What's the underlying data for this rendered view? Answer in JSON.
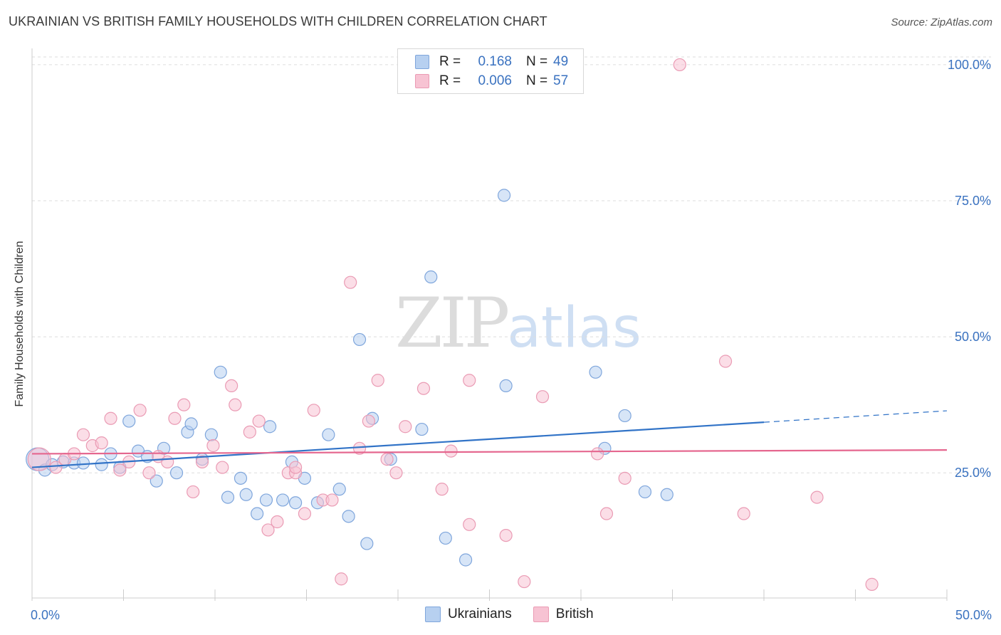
{
  "title": "UKRAINIAN VS BRITISH FAMILY HOUSEHOLDS WITH CHILDREN CORRELATION CHART",
  "source": "Source: ZipAtlas.com",
  "watermark": {
    "zip": "ZIP",
    "atlas": "atlas"
  },
  "legend": {
    "r_label": "R =",
    "n_label": "N =",
    "series": [
      {
        "name": "Ukrainians",
        "r": "0.168",
        "n": "49"
      },
      {
        "name": "British",
        "r": "0.006",
        "n": "57"
      }
    ]
  },
  "colors": {
    "blue_fill": "#b7d0f0",
    "blue_stroke": "#7fa6dc",
    "blue_line": "#3173c7",
    "pink_fill": "#f7c3d3",
    "pink_stroke": "#ea9bb4",
    "pink_line": "#e5678f",
    "axis_text": "#3a72c0",
    "grid": "#dddddd"
  },
  "chart_data": {
    "type": "scatter",
    "title": "UKRAINIAN VS BRITISH FAMILY HOUSEHOLDS WITH CHILDREN CORRELATION CHART",
    "xlabel": "",
    "ylabel": "Family Households with Children",
    "xlim": [
      0,
      50
    ],
    "ylim": [
      2,
      103
    ],
    "x_tick_labels": [
      {
        "value": 0,
        "label": "0.0%"
      },
      {
        "value": 50,
        "label": "50.0%"
      }
    ],
    "y_tick_labels": [
      {
        "value": 25,
        "label": "25.0%"
      },
      {
        "value": 50,
        "label": "50.0%"
      },
      {
        "value": 75,
        "label": "75.0%"
      },
      {
        "value": 100,
        "label": "100.0%"
      }
    ],
    "grid": true,
    "legend_position": "top-center",
    "series": [
      {
        "name": "Ukrainians",
        "trend": {
          "x": [
            0,
            40
          ],
          "y": [
            26.0,
            34.3
          ],
          "dashed_to": [
            50,
            36.4
          ]
        },
        "points": [
          {
            "x": 0.3,
            "y": 27.5,
            "big": true
          },
          {
            "x": 0.7,
            "y": 25.5
          },
          {
            "x": 1.1,
            "y": 26.5
          },
          {
            "x": 1.7,
            "y": 27.0
          },
          {
            "x": 2.3,
            "y": 26.8
          },
          {
            "x": 2.8,
            "y": 26.8
          },
          {
            "x": 3.8,
            "y": 26.5
          },
          {
            "x": 4.3,
            "y": 28.5
          },
          {
            "x": 4.8,
            "y": 26.0
          },
          {
            "x": 5.3,
            "y": 34.5
          },
          {
            "x": 5.8,
            "y": 29.0
          },
          {
            "x": 6.3,
            "y": 28.0
          },
          {
            "x": 6.8,
            "y": 23.5
          },
          {
            "x": 7.2,
            "y": 29.5
          },
          {
            "x": 7.9,
            "y": 25.0
          },
          {
            "x": 8.5,
            "y": 32.5
          },
          {
            "x": 8.7,
            "y": 34.0
          },
          {
            "x": 9.3,
            "y": 27.5
          },
          {
            "x": 9.8,
            "y": 32.0
          },
          {
            "x": 10.3,
            "y": 43.5
          },
          {
            "x": 10.7,
            "y": 20.5
          },
          {
            "x": 11.4,
            "y": 24.0
          },
          {
            "x": 11.7,
            "y": 21.0
          },
          {
            "x": 12.3,
            "y": 17.5
          },
          {
            "x": 12.8,
            "y": 20.0
          },
          {
            "x": 13.0,
            "y": 33.5
          },
          {
            "x": 13.7,
            "y": 20.0
          },
          {
            "x": 14.2,
            "y": 27.0
          },
          {
            "x": 14.4,
            "y": 19.5
          },
          {
            "x": 14.9,
            "y": 24.0
          },
          {
            "x": 15.6,
            "y": 19.5
          },
          {
            "x": 16.2,
            "y": 32.0
          },
          {
            "x": 16.8,
            "y": 22.0
          },
          {
            "x": 17.3,
            "y": 17.0
          },
          {
            "x": 17.9,
            "y": 49.5
          },
          {
            "x": 18.3,
            "y": 12.0
          },
          {
            "x": 18.6,
            "y": 35.0
          },
          {
            "x": 19.6,
            "y": 27.5
          },
          {
            "x": 21.3,
            "y": 33.0
          },
          {
            "x": 21.8,
            "y": 61.0
          },
          {
            "x": 22.6,
            "y": 13.0
          },
          {
            "x": 23.7,
            "y": 9.0
          },
          {
            "x": 25.8,
            "y": 76.0
          },
          {
            "x": 25.9,
            "y": 41.0
          },
          {
            "x": 30.8,
            "y": 43.5
          },
          {
            "x": 31.3,
            "y": 29.5
          },
          {
            "x": 32.4,
            "y": 35.5
          },
          {
            "x": 33.5,
            "y": 21.5
          },
          {
            "x": 34.7,
            "y": 21.0
          }
        ]
      },
      {
        "name": "British",
        "trend": {
          "x": [
            0,
            50
          ],
          "y": [
            28.5,
            29.2
          ]
        },
        "points": [
          {
            "x": 0.4,
            "y": 27.5,
            "big": true
          },
          {
            "x": 1.3,
            "y": 26.0
          },
          {
            "x": 1.8,
            "y": 27.5
          },
          {
            "x": 2.3,
            "y": 28.5
          },
          {
            "x": 2.8,
            "y": 32.0
          },
          {
            "x": 3.3,
            "y": 30.0
          },
          {
            "x": 3.8,
            "y": 30.5
          },
          {
            "x": 4.3,
            "y": 35.0
          },
          {
            "x": 4.8,
            "y": 25.5
          },
          {
            "x": 5.3,
            "y": 27.0
          },
          {
            "x": 5.9,
            "y": 36.5
          },
          {
            "x": 6.4,
            "y": 25.0
          },
          {
            "x": 6.9,
            "y": 28.0
          },
          {
            "x": 7.4,
            "y": 27.0
          },
          {
            "x": 7.8,
            "y": 35.0
          },
          {
            "x": 8.3,
            "y": 37.5
          },
          {
            "x": 8.8,
            "y": 21.5
          },
          {
            "x": 9.3,
            "y": 27.0
          },
          {
            "x": 9.9,
            "y": 30.0
          },
          {
            "x": 10.4,
            "y": 26.0
          },
          {
            "x": 10.9,
            "y": 41.0
          },
          {
            "x": 11.1,
            "y": 37.5
          },
          {
            "x": 11.9,
            "y": 32.5
          },
          {
            "x": 12.4,
            "y": 34.5
          },
          {
            "x": 12.9,
            "y": 14.5
          },
          {
            "x": 13.4,
            "y": 16.0
          },
          {
            "x": 14.0,
            "y": 25.0
          },
          {
            "x": 14.4,
            "y": 25.0
          },
          {
            "x": 14.9,
            "y": 17.5
          },
          {
            "x": 15.4,
            "y": 36.5
          },
          {
            "x": 15.9,
            "y": 20.0
          },
          {
            "x": 16.4,
            "y": 20.0
          },
          {
            "x": 16.9,
            "y": 5.5
          },
          {
            "x": 17.4,
            "y": 60.0
          },
          {
            "x": 17.9,
            "y": 29.5
          },
          {
            "x": 18.4,
            "y": 34.5
          },
          {
            "x": 18.9,
            "y": 42.0
          },
          {
            "x": 19.4,
            "y": 27.5
          },
          {
            "x": 19.9,
            "y": 25.0
          },
          {
            "x": 20.4,
            "y": 33.5
          },
          {
            "x": 21.4,
            "y": 40.5
          },
          {
            "x": 22.4,
            "y": 22.0
          },
          {
            "x": 22.9,
            "y": 29.0
          },
          {
            "x": 23.9,
            "y": 15.5
          },
          {
            "x": 23.9,
            "y": 42.0
          },
          {
            "x": 25.9,
            "y": 13.5
          },
          {
            "x": 26.9,
            "y": 5.0
          },
          {
            "x": 27.9,
            "y": 39.0
          },
          {
            "x": 30.9,
            "y": 28.5
          },
          {
            "x": 31.4,
            "y": 17.5
          },
          {
            "x": 32.4,
            "y": 24.0
          },
          {
            "x": 35.4,
            "y": 100.0
          },
          {
            "x": 37.9,
            "y": 45.5
          },
          {
            "x": 38.9,
            "y": 17.5
          },
          {
            "x": 42.9,
            "y": 20.5
          },
          {
            "x": 45.9,
            "y": 4.5
          },
          {
            "x": 14.4,
            "y": 26.0
          }
        ]
      }
    ]
  }
}
